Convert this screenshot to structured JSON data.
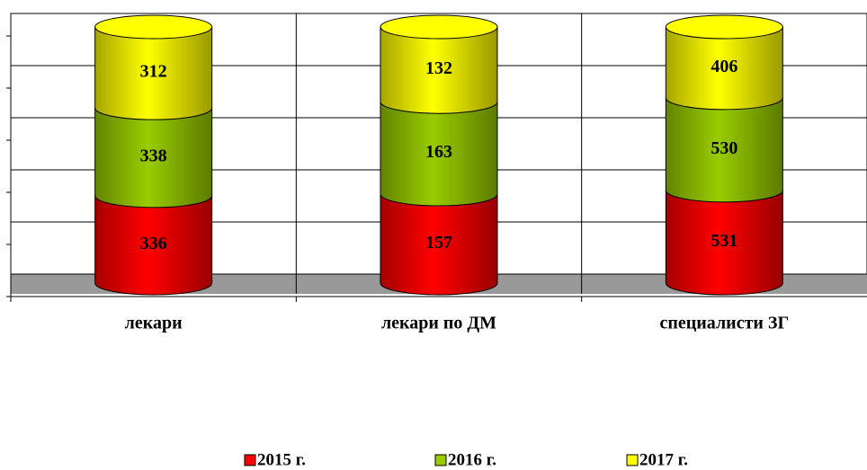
{
  "chart_data": {
    "type": "bar",
    "stacking": "percent",
    "categories": [
      "лекари",
      "лекари по ДМ",
      "специалисти ЗГ"
    ],
    "series": [
      {
        "name": "2015 г.",
        "color": "#ff0000",
        "values": [
          336,
          157,
          531
        ]
      },
      {
        "name": "2016 г.",
        "color": "#99cc00",
        "values": [
          338,
          163,
          530
        ]
      },
      {
        "name": "2017 г.",
        "color": "#ffff00",
        "values": [
          312,
          132,
          406
        ]
      }
    ],
    "ylim": [
      0,
      100
    ],
    "yticks": [
      0,
      20,
      40,
      60,
      80,
      100
    ],
    "grid": true,
    "legend": "bottom"
  }
}
